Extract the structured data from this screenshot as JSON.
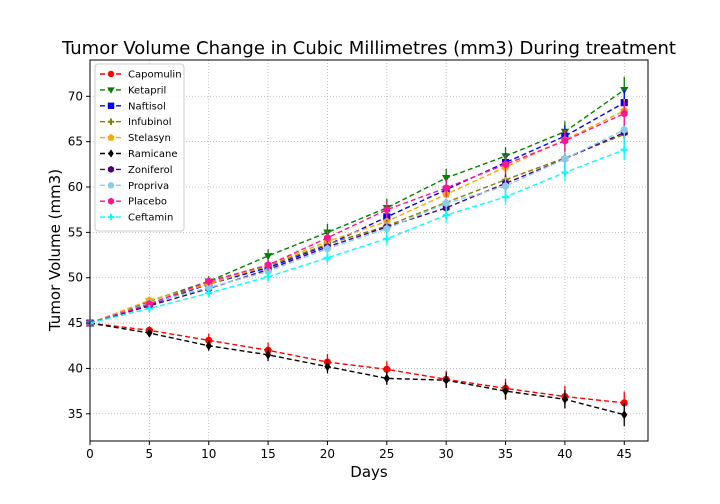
{
  "chart_data": {
    "type": "line",
    "title": "Tumor Volume Change in Cubic Millimetres (mm3) During treatment",
    "xlabel": "Days",
    "ylabel": "Tumor Volume (mm3)",
    "xlim": [
      0,
      47
    ],
    "ylim": [
      32.0,
      74.0
    ],
    "xticks": [
      0,
      5,
      10,
      15,
      20,
      25,
      30,
      35,
      40,
      45
    ],
    "yticks": [
      35,
      40,
      45,
      50,
      55,
      60,
      65,
      70
    ],
    "grid": true,
    "grid_style": "dotted",
    "legend_position": "top-left",
    "x": [
      0,
      5,
      10,
      15,
      20,
      25,
      30,
      35,
      40,
      45
    ],
    "series": [
      {
        "name": "Capomulin",
        "color": "#ff0000",
        "marker": "circle",
        "values": [
          45.0,
          44.2,
          43.1,
          42.0,
          40.7,
          39.9,
          38.8,
          37.8,
          36.9,
          36.2
        ],
        "errors": [
          0,
          0.45,
          0.7,
          0.85,
          0.9,
          0.9,
          0.95,
          1.05,
          1.2,
          1.25
        ]
      },
      {
        "name": "Ketapril",
        "color": "#008000",
        "marker": "triangle-down",
        "values": [
          45.0,
          47.4,
          49.6,
          52.4,
          55.0,
          57.7,
          61.0,
          63.4,
          66.1,
          70.7
        ],
        "errors": [
          0,
          0.3,
          0.55,
          0.75,
          0.95,
          1.0,
          1.0,
          1.0,
          1.15,
          1.45
        ]
      },
      {
        "name": "Naftisol",
        "color": "#0000ff",
        "marker": "square",
        "values": [
          45.0,
          47.0,
          49.3,
          51.1,
          53.6,
          56.7,
          59.7,
          62.7,
          65.6,
          69.3
        ],
        "errors": [
          0,
          0.25,
          0.5,
          0.75,
          0.8,
          0.9,
          1.0,
          1.05,
          1.2,
          1.4
        ]
      },
      {
        "name": "Infubinol",
        "color": "#808000",
        "marker": "plus",
        "values": [
          45.0,
          47.1,
          49.4,
          51.3,
          53.7,
          55.7,
          58.3,
          60.8,
          63.2,
          65.8
        ],
        "errors": [
          0,
          0.25,
          0.45,
          0.6,
          0.75,
          0.85,
          0.95,
          1.1,
          1.2,
          1.3
        ]
      },
      {
        "name": "Stelasyn",
        "color": "#ffa500",
        "marker": "pentagon",
        "values": [
          45.0,
          47.5,
          49.3,
          51.4,
          54.0,
          56.2,
          59.2,
          62.2,
          65.2,
          68.4
        ],
        "errors": [
          0,
          0.25,
          0.45,
          0.6,
          0.75,
          0.85,
          0.95,
          1.0,
          1.1,
          1.3
        ]
      },
      {
        "name": "Ramicane",
        "color": "#000000",
        "marker": "diamond",
        "values": [
          45.0,
          43.9,
          42.5,
          41.5,
          40.2,
          38.9,
          38.7,
          37.5,
          36.6,
          34.9
        ],
        "errors": [
          0,
          0.35,
          0.55,
          0.7,
          0.75,
          0.7,
          0.85,
          0.95,
          1.0,
          1.25
        ]
      },
      {
        "name": "Zoniferol",
        "color": "#4b0082",
        "marker": "hexagon",
        "values": [
          45.0,
          46.9,
          48.8,
          50.9,
          53.4,
          55.6,
          57.7,
          60.4,
          63.1,
          66.0
        ],
        "errors": [
          0,
          0.2,
          0.4,
          0.55,
          0.65,
          0.75,
          0.9,
          1.0,
          1.1,
          1.2
        ]
      },
      {
        "name": "Propriva",
        "color": "#87ceeb",
        "marker": "circle",
        "values": [
          45.0,
          47.2,
          48.9,
          50.7,
          53.2,
          55.4,
          58.2,
          60.1,
          63.1,
          66.3
        ],
        "errors": [
          0,
          0.25,
          0.45,
          0.6,
          0.7,
          0.8,
          0.9,
          1.0,
          1.15,
          1.3
        ]
      },
      {
        "name": "Placebo",
        "color": "#ff1493",
        "marker": "hexagon",
        "values": [
          45.0,
          47.1,
          49.6,
          51.4,
          54.4,
          57.5,
          59.9,
          62.5,
          65.1,
          68.1
        ],
        "errors": [
          0,
          0.25,
          0.5,
          0.65,
          0.8,
          0.9,
          1.0,
          1.1,
          1.2,
          1.35
        ]
      },
      {
        "name": "Ceftamin",
        "color": "#00ffff",
        "marker": "plus",
        "values": [
          45.0,
          46.6,
          48.3,
          50.1,
          52.2,
          54.3,
          56.9,
          58.9,
          61.6,
          64.1
        ],
        "errors": [
          0,
          0.2,
          0.4,
          0.55,
          0.65,
          0.75,
          0.85,
          0.9,
          1.0,
          1.15
        ]
      }
    ]
  }
}
